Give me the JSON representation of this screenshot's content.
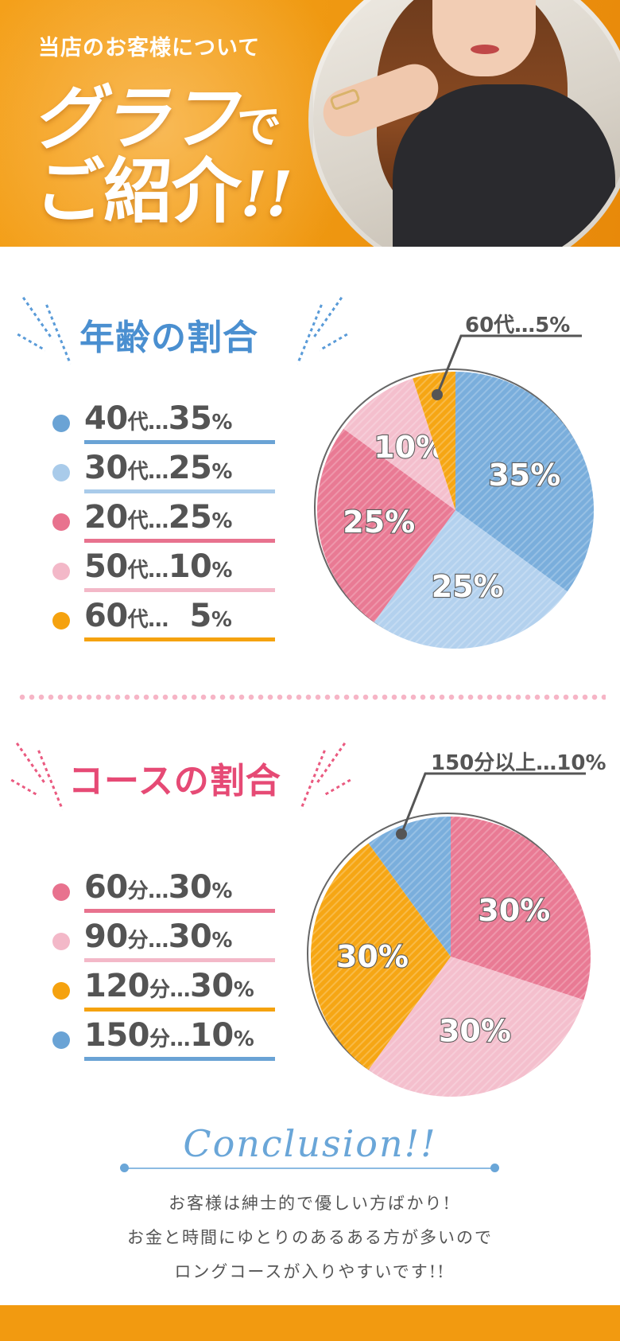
{
  "hero": {
    "kicker": "当店のお客様について",
    "big_line1": "グラフ",
    "big_line1_suffix": "で",
    "big_line2": "ご紹介",
    "big_line2_excl": "!!"
  },
  "age_section": {
    "title": "年齢の割合",
    "legend": [
      {
        "label": "40",
        "suffix": "代",
        "sep": "…",
        "value": "35",
        "unit": "%",
        "color": "#6aa3d5"
      },
      {
        "label": "30",
        "suffix": "代",
        "sep": "…",
        "value": "25",
        "unit": "%",
        "color": "#a9cbea"
      },
      {
        "label": "20",
        "suffix": "代",
        "sep": "…",
        "value": "25",
        "unit": "%",
        "color": "#e8728e"
      },
      {
        "label": "50",
        "suffix": "代",
        "sep": "…",
        "value": "10",
        "unit": "%",
        "color": "#f3b8c8"
      },
      {
        "label": "60",
        "suffix": "代",
        "sep": "…",
        "value": "  5",
        "unit": "%",
        "color": "#f5a20f"
      }
    ],
    "callout": "60代…5%"
  },
  "course_section": {
    "title": "コースの割合",
    "legend": [
      {
        "label": "60",
        "suffix": "分",
        "sep": "…",
        "value": "30",
        "unit": "%",
        "color": "#e8728e"
      },
      {
        "label": "90",
        "suffix": "分",
        "sep": "…",
        "value": "30",
        "unit": "%",
        "color": "#f3b8c8"
      },
      {
        "label": "120",
        "suffix": "分",
        "sep": "…",
        "value": "30",
        "unit": "%",
        "color": "#f5a20f"
      },
      {
        "label": "150",
        "suffix": "分",
        "sep": "…",
        "value": "10",
        "unit": "%",
        "color": "#6aa3d5"
      }
    ],
    "callout": "150分以上…10%"
  },
  "chart_data": [
    {
      "type": "pie",
      "title": "年齢の割合",
      "categories": [
        "40代",
        "30代",
        "20代",
        "50代",
        "60代"
      ],
      "values": [
        35,
        25,
        25,
        10,
        5
      ],
      "labels": [
        "35%",
        "25%",
        "25%",
        "10%",
        ""
      ],
      "colors": [
        "#7aaedc",
        "#b3d1ee",
        "#e97a94",
        "#f4bfcd",
        "#f6a614"
      ]
    },
    {
      "type": "pie",
      "title": "コースの割合",
      "categories": [
        "60分",
        "90分",
        "120分",
        "150分以上"
      ],
      "values": [
        30,
        30,
        30,
        10
      ],
      "labels": [
        "30%",
        "30%",
        "30%",
        ""
      ],
      "colors": [
        "#e97a94",
        "#f4bfcd",
        "#f6a614",
        "#7aaedc"
      ]
    }
  ],
  "conclusion": {
    "title": "Conclusion!!",
    "lines": [
      "お客様は紳士的で優しい方ばかり!",
      "お金と時間にゆとりのあるある方が多いので",
      "ロングコースが入りやすいです!!"
    ]
  }
}
